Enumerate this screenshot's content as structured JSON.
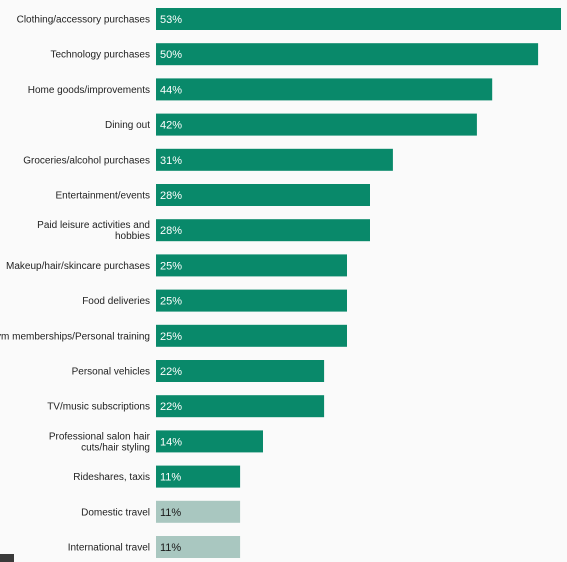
{
  "chart_data": {
    "type": "bar",
    "orientation": "horizontal",
    "categories": [
      "Clothing/accessory purchases",
      "Technology purchases",
      "Home goods/improvements",
      "Dining out",
      "Groceries/alcohol purchases",
      "Entertainment/events",
      "Paid leisure activities and hobbies",
      "Makeup/hair/skincare purchases",
      "Food deliveries",
      "Gym memberships/Personal training",
      "Personal vehicles",
      "TV/music subscriptions",
      "Professional salon hair cuts/hair styling",
      "Rideshares, taxis",
      "Domestic travel",
      "International travel"
    ],
    "values": [
      53,
      50,
      44,
      42,
      31,
      28,
      28,
      25,
      25,
      25,
      22,
      22,
      14,
      11,
      11,
      11
    ],
    "value_labels": [
      "53%",
      "50%",
      "44%",
      "42%",
      "31%",
      "28%",
      "28%",
      "25%",
      "25%",
      "25%",
      "22%",
      "22%",
      "14%",
      "11%",
      "11%",
      "11%"
    ],
    "bar_colors": [
      "#09896a",
      "#09896a",
      "#09896a",
      "#09896a",
      "#09896a",
      "#09896a",
      "#09896a",
      "#09896a",
      "#09896a",
      "#09896a",
      "#09896a",
      "#09896a",
      "#09896a",
      "#09896a",
      "#a9c7c0",
      "#a9c7c0"
    ],
    "label_colors": [
      "#ffffff",
      "#ffffff",
      "#ffffff",
      "#ffffff",
      "#ffffff",
      "#ffffff",
      "#ffffff",
      "#ffffff",
      "#ffffff",
      "#ffffff",
      "#ffffff",
      "#ffffff",
      "#ffffff",
      "#ffffff",
      "#1a1a1a",
      "#1a1a1a"
    ],
    "title": "",
    "xlabel": "",
    "ylabel": "",
    "xlim": [
      0,
      53
    ],
    "grid": false,
    "legend": "none"
  }
}
